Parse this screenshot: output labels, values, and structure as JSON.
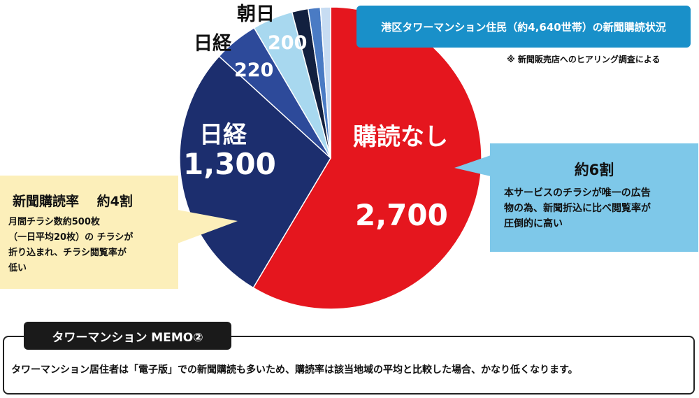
{
  "chart_data": {
    "type": "pie",
    "title": "港区タワーマンション住民（約4,640世帯）の新聞購読状況",
    "note": "※ 新聞販売店へのヒアリング調査による",
    "slices": [
      {
        "label": "購読なし",
        "value": 2700,
        "value_text": "2,700",
        "color": "#e5161e"
      },
      {
        "label": "日経",
        "value": 1300,
        "value_text": "1,300",
        "color": "#1c2e6e"
      },
      {
        "label": "日経",
        "value": 220,
        "value_text": "220",
        "color": "#2d4a9a"
      },
      {
        "label": "朝日",
        "value": 200,
        "value_text": "200",
        "color": "#a8d8ef"
      },
      {
        "label": "",
        "value": 80,
        "value_text": "",
        "color": "#12203f"
      },
      {
        "label": "",
        "value": 60,
        "value_text": "",
        "color": "#4a7bc4"
      },
      {
        "label": "",
        "value": 50,
        "value_text": "",
        "color": "#c7dcf2"
      }
    ]
  },
  "callouts": {
    "right": {
      "heading": "約6割",
      "lines": [
        "本サービスのチラシが唯一の広告",
        "物の為、新聞折込に比べ閲覧率が",
        "圧倒的に高い"
      ]
    },
    "left": {
      "heading": "新聞購読率　 約4割",
      "lines": [
        "月間チラシ数約500枚",
        "（一日平均20枚）の チラシが",
        "折り込まれ、チラシ閲覧率が",
        "低い"
      ]
    }
  },
  "memo": {
    "tab_title": "タワーマンション MEMO②",
    "text": "タワーマンション居住者は「電子版」での新聞購読も多いため、購読率は該当地域の平均と比較した場合、かなり低くなります。"
  },
  "colors": {
    "title_bg": "#1990c9",
    "callout_right_bg": "#7ec8e9",
    "callout_left_bg": "#fcefba",
    "memo_tab_bg": "#1a1a1a"
  }
}
